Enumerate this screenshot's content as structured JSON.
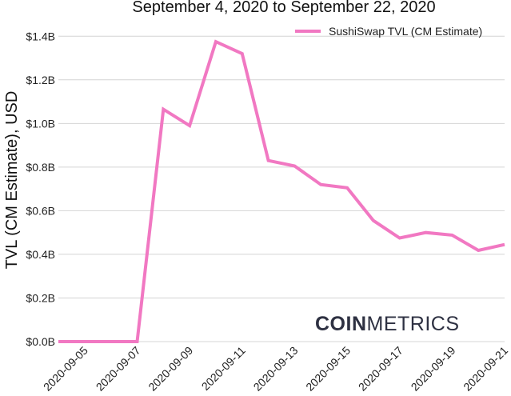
{
  "colors": {
    "series": "#f178c2",
    "grid": "#d4d4d4",
    "text": "#222222",
    "watermark": "#2e3142"
  },
  "chart_data": {
    "type": "line",
    "title": "September 4, 2020 to September 22, 2020",
    "xlabel": "",
    "ylabel": "TVL (CM Estimate), USD",
    "ylim": [
      0,
      1.5
    ],
    "yticks": [
      0,
      0.2,
      0.4,
      0.6,
      0.8,
      1.0,
      1.2,
      1.4
    ],
    "ytick_labels": [
      "$0.0B",
      "$0.2B",
      "$0.4B",
      "$0.6B",
      "$0.8B",
      "$1.0B",
      "$1.2B",
      "$1.4B"
    ],
    "xlim": [
      "2020-09-04",
      "2020-09-21"
    ],
    "xtick_labels": [
      "2020-09-05",
      "2020-09-07",
      "2020-09-09",
      "2020-09-11",
      "2020-09-13",
      "2020-09-15",
      "2020-09-17",
      "2020-09-19",
      "2020-09-21"
    ],
    "grid": "horizontal",
    "legend_position": "top-right",
    "series": [
      {
        "name": "SushiSwap TVL (CM Estimate)",
        "x": [
          "2020-09-04",
          "2020-09-05",
          "2020-09-06",
          "2020-09-07",
          "2020-09-08",
          "2020-09-09",
          "2020-09-10",
          "2020-09-11",
          "2020-09-12",
          "2020-09-13",
          "2020-09-14",
          "2020-09-15",
          "2020-09-16",
          "2020-09-17",
          "2020-09-18",
          "2020-09-19",
          "2020-09-20",
          "2020-09-21"
        ],
        "values": [
          0.0,
          0.0,
          0.0,
          0.0,
          1.065,
          0.99,
          1.375,
          1.32,
          0.83,
          0.805,
          0.72,
          0.705,
          0.555,
          0.475,
          0.5,
          0.488,
          0.418,
          0.445
        ]
      }
    ]
  },
  "watermark": {
    "bold": "COIN",
    "light": "METRICS"
  }
}
